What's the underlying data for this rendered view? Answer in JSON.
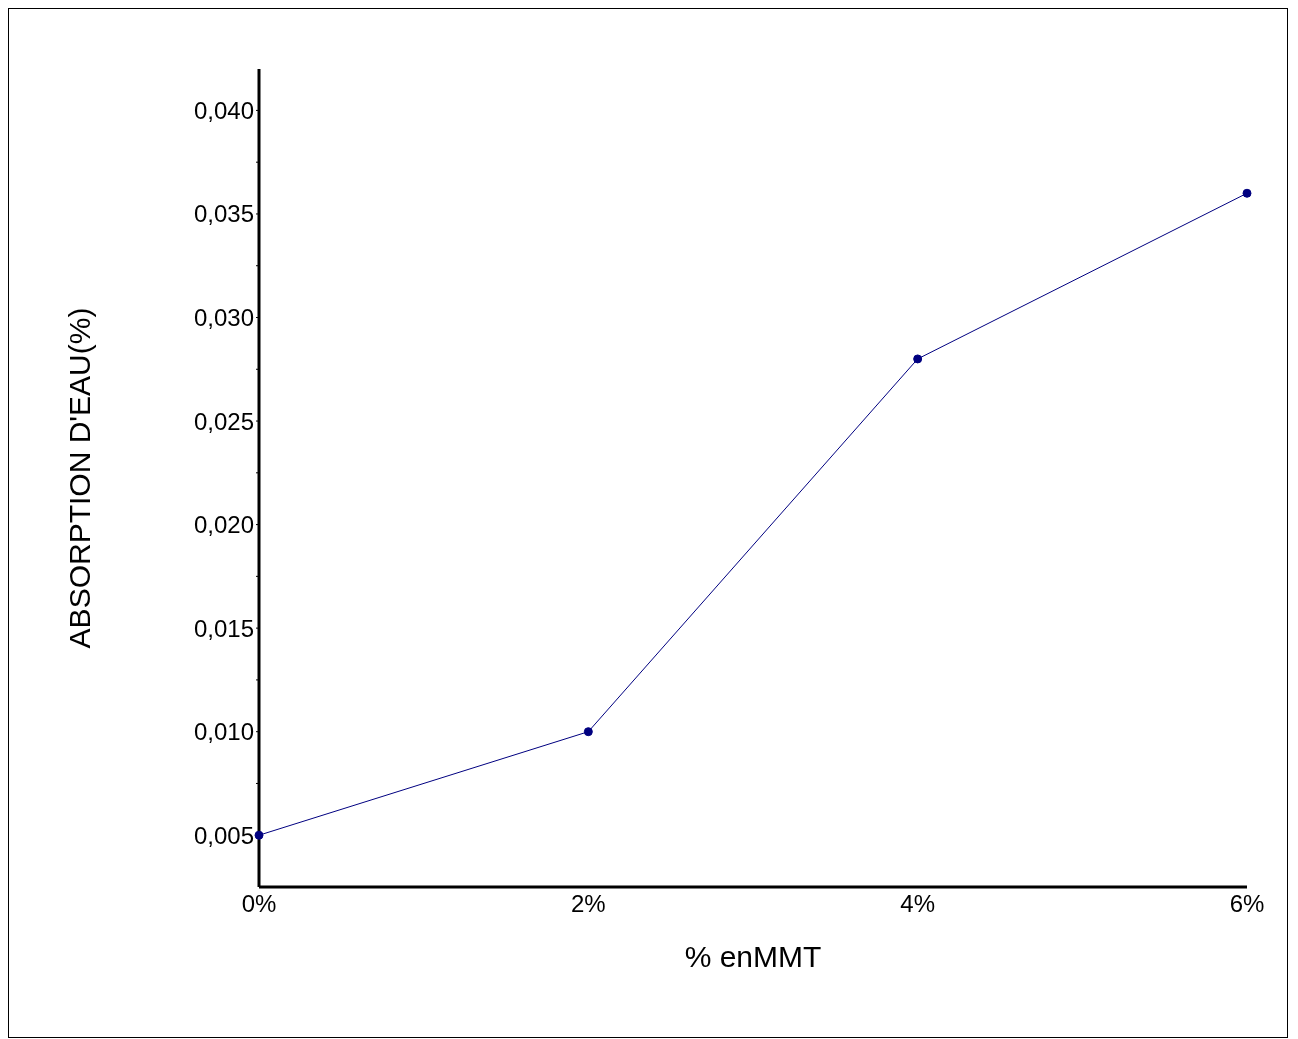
{
  "chart_data": {
    "type": "line",
    "xlabel": "% enMMT",
    "ylabel": "ABSORPTION D'EAU(%)",
    "categories": [
      "0%",
      "2%",
      "4%",
      "6%"
    ],
    "series": [
      {
        "color": "#000080",
        "values": [
          0.005,
          0.01,
          0.028,
          0.036
        ]
      }
    ],
    "ylim": [
      0.0025,
      0.042
    ],
    "yticks": [
      {
        "value": 0.005,
        "label": "0,005"
      },
      {
        "value": 0.0075,
        "label": null
      },
      {
        "value": 0.01,
        "label": "0,010"
      },
      {
        "value": 0.0125,
        "label": null
      },
      {
        "value": 0.015,
        "label": "0,015"
      },
      {
        "value": 0.0175,
        "label": null
      },
      {
        "value": 0.02,
        "label": "0,020"
      },
      {
        "value": 0.0225,
        "label": null
      },
      {
        "value": 0.025,
        "label": "0,025"
      },
      {
        "value": 0.0275,
        "label": null
      },
      {
        "value": 0.03,
        "label": "0,030"
      },
      {
        "value": 0.0325,
        "label": null
      },
      {
        "value": 0.035,
        "label": "0,035"
      },
      {
        "value": 0.0375,
        "label": null
      },
      {
        "value": 0.04,
        "label": "0,040"
      }
    ],
    "grid": false,
    "legend": false,
    "marker": "circle",
    "line_style": "solid"
  }
}
